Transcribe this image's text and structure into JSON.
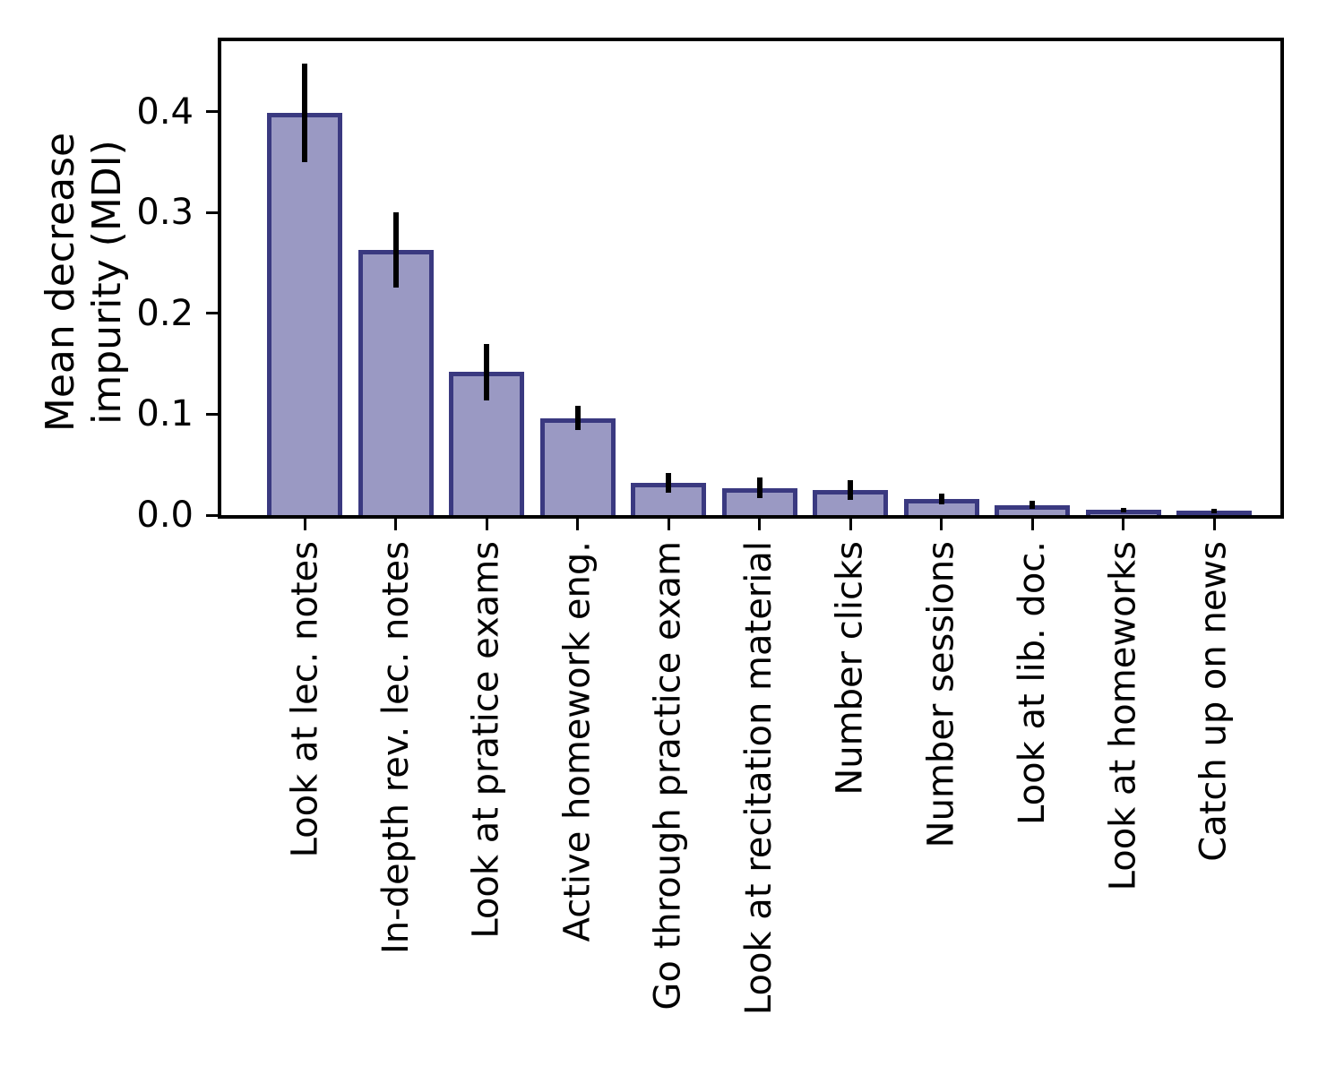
{
  "chart_data": {
    "type": "bar",
    "title": "",
    "xlabel": "",
    "ylabel": "Mean decrease\nimpurity (MDI)",
    "categories": [
      "Look at lec. notes",
      "In-depth rev. lec. notes",
      "Look at pratice exams",
      "Active homework eng.",
      "Go through practice exam",
      "Look at recitation material",
      "Number clicks",
      "Number sessions",
      "Look at lib. doc.",
      "Look at homeworks",
      "Catch up on news"
    ],
    "values": [
      0.399,
      0.263,
      0.142,
      0.096,
      0.032,
      0.027,
      0.025,
      0.016,
      0.01,
      0.005,
      0.004
    ],
    "errors": [
      0.049,
      0.037,
      0.028,
      0.012,
      0.01,
      0.01,
      0.01,
      0.005,
      0.004,
      0.002,
      0.002
    ],
    "yticks": [
      {
        "label": "0.0",
        "value": 0.0
      },
      {
        "label": "0.1",
        "value": 0.1
      },
      {
        "label": "0.2",
        "value": 0.2
      },
      {
        "label": "0.3",
        "value": 0.3
      },
      {
        "label": "0.4",
        "value": 0.4
      }
    ],
    "ylim": [
      0,
      0.47
    ],
    "grid": false,
    "legend": null,
    "error_bar_style": "vertical, no caps",
    "colors": {
      "bar_fill": "#9a99c3",
      "bar_edge": "#3a3980",
      "error_bar": "#000000",
      "axis": "#000000",
      "text": "#000000",
      "background": "#ffffff"
    }
  }
}
